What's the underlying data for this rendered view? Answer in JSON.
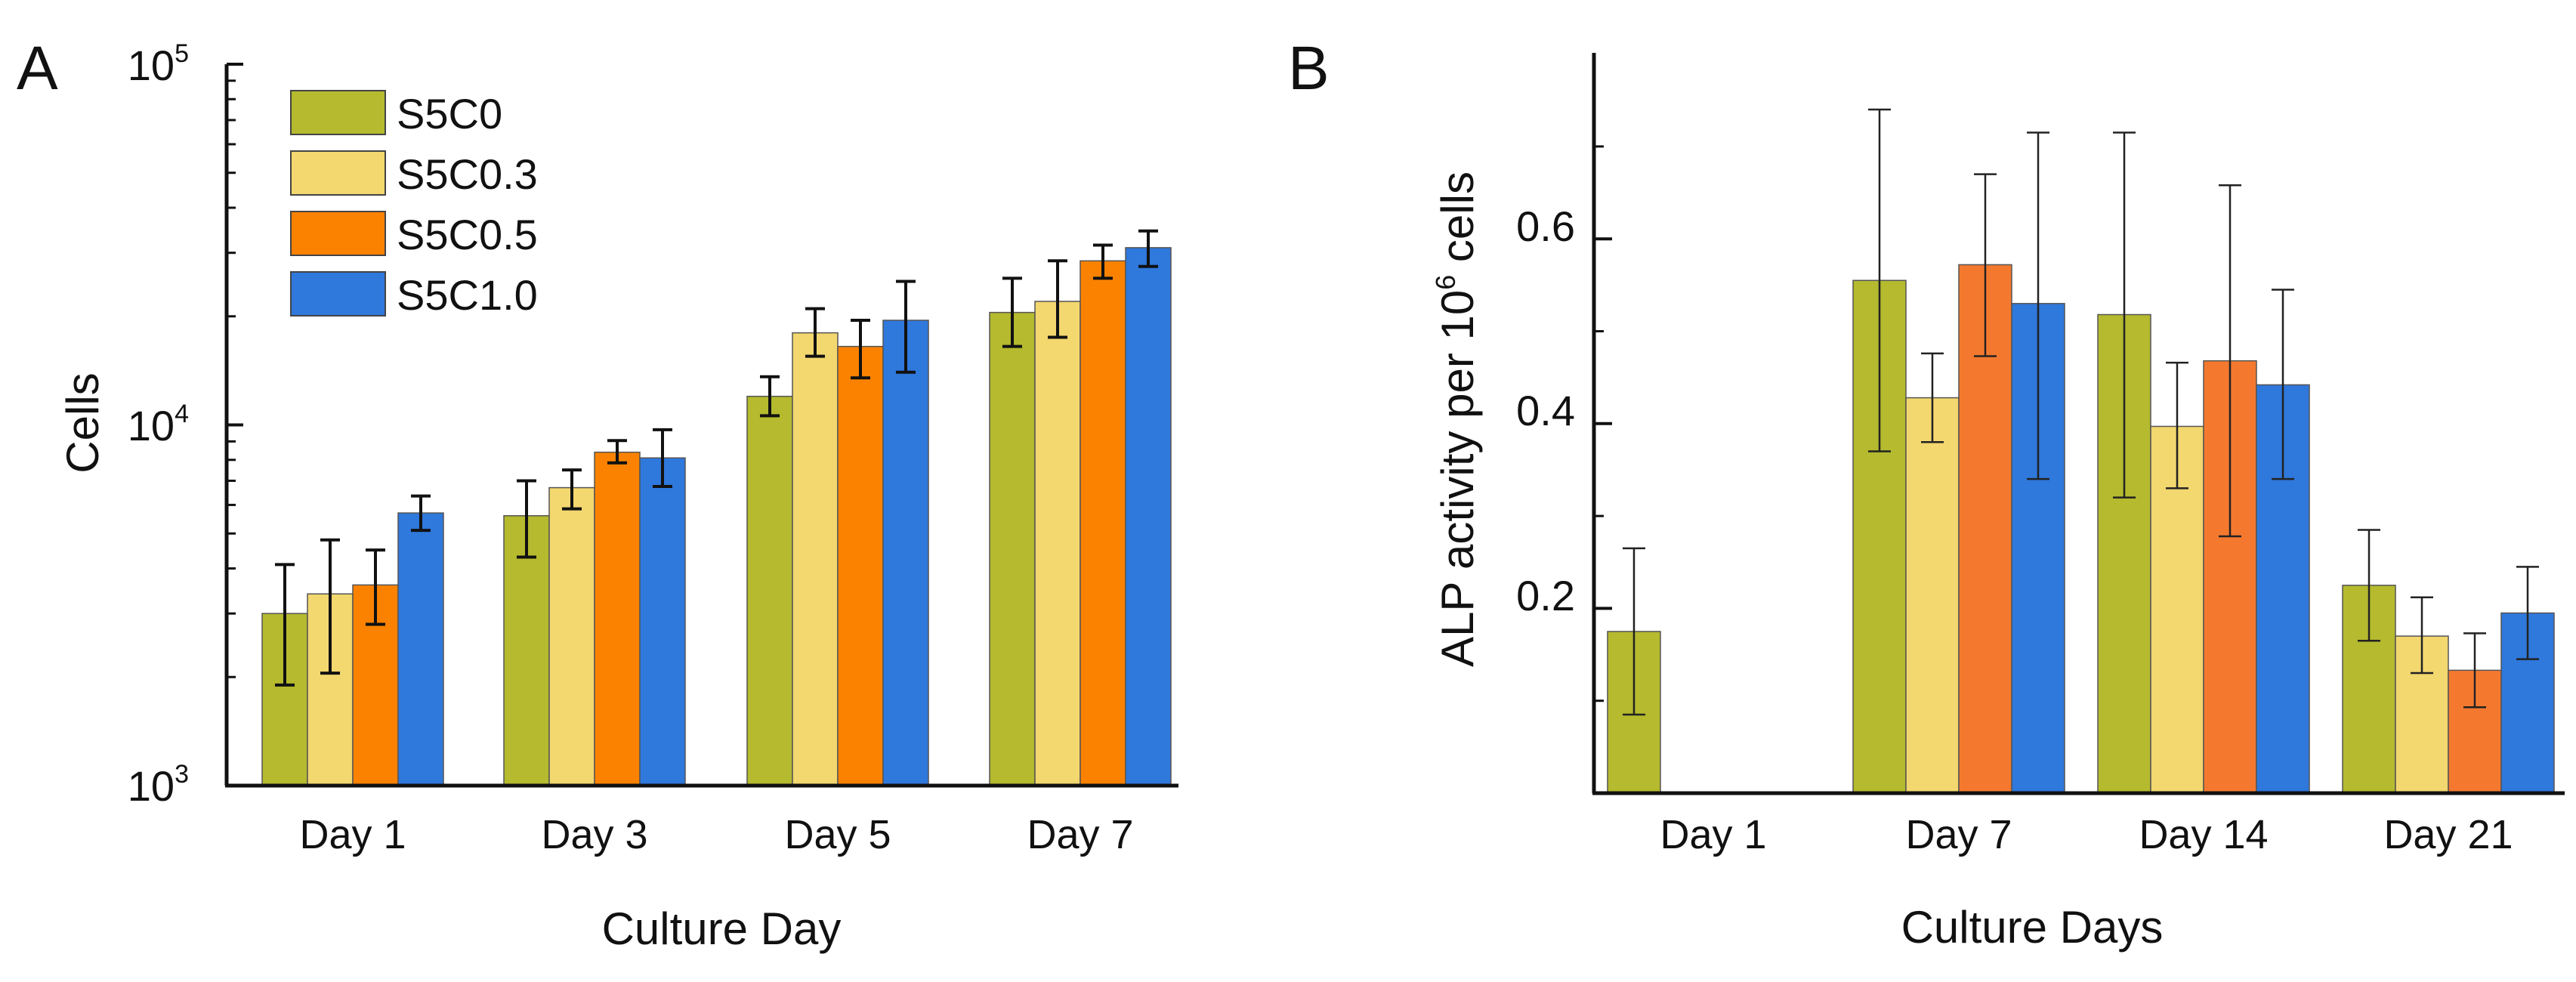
{
  "figure": {
    "series_colors": [
      "#b5ba2e",
      "#f3d76f",
      "#fb8200",
      "#2f78dc"
    ],
    "series_colors_b": [
      "#b5ba2e",
      "#f3d76f",
      "#f4792f",
      "#2f78dc"
    ]
  },
  "chart_data": [
    {
      "type": "bar",
      "panel_label": "A",
      "title": "",
      "xlabel": "Culture Day",
      "ylabel": "Cells",
      "yscale": "log",
      "ylim": [
        1000,
        100000
      ],
      "y_ticks": [
        {
          "value": 1000,
          "base": "10",
          "exp": "3"
        },
        {
          "value": 10000,
          "base": "10",
          "exp": "4"
        },
        {
          "value": 100000,
          "base": "10",
          "exp": "5"
        }
      ],
      "categories": [
        "Day 1",
        "Day 3",
        "Day 5",
        "Day 7"
      ],
      "series": [
        {
          "name": "S5C0",
          "values": [
            3000,
            5600,
            12000,
            20500
          ],
          "errors": [
            [
              1900,
              4100
            ],
            [
              4300,
              7000
            ],
            [
              10600,
              13600
            ],
            [
              16500,
              25500
            ]
          ]
        },
        {
          "name": "S5C0.3",
          "values": [
            3400,
            6700,
            18000,
            22000
          ],
          "errors": [
            [
              2050,
              4800
            ],
            [
              5850,
              7500
            ],
            [
              15500,
              21000
            ],
            [
              17500,
              28500
            ]
          ]
        },
        {
          "name": "S5C0.5",
          "values": [
            3600,
            8400,
            16500,
            28500
          ],
          "errors": [
            [
              2800,
              4500
            ],
            [
              7850,
              9050
            ],
            [
              13500,
              19500
            ],
            [
              25500,
              31500
            ]
          ]
        },
        {
          "name": "S5C1.0",
          "values": [
            5700,
            8100,
            19500,
            31000
          ],
          "errors": [
            [
              5100,
              6350
            ],
            [
              6750,
              9700
            ],
            [
              14000,
              25000
            ],
            [
              27500,
              34500
            ]
          ]
        }
      ],
      "legend": {
        "position": "top-left"
      }
    },
    {
      "type": "bar",
      "panel_label": "B",
      "title": "",
      "xlabel": "Culture Days",
      "ylabel": "ALP activity per 10",
      "ylabel_exp": "6",
      "ylabel_suffix": " cells",
      "ylim": [
        0,
        0.78
      ],
      "y_ticks": [
        {
          "value": 0.2,
          "label": "0.2"
        },
        {
          "value": 0.4,
          "label": "0.4"
        },
        {
          "value": 0.6,
          "label": "0.6"
        }
      ],
      "categories": [
        "Day 1",
        "Day 7",
        "Day 14",
        "Day 21"
      ],
      "series": [
        {
          "name": "S5C0",
          "values": [
            0.175,
            0.555,
            0.518,
            0.225
          ],
          "errors": [
            [
              0.085,
              0.265
            ],
            [
              0.37,
              0.74
            ],
            [
              0.32,
              0.715
            ],
            [
              0.165,
              0.285
            ]
          ]
        },
        {
          "name": "S5C0.3",
          "values": [
            null,
            0.428,
            0.397,
            0.17
          ],
          "errors": [
            null,
            [
              0.38,
              0.476
            ],
            [
              0.33,
              0.466
            ],
            [
              0.13,
              0.212
            ]
          ]
        },
        {
          "name": "S5C0.5",
          "values": [
            null,
            0.572,
            0.468,
            0.133
          ],
          "errors": [
            null,
            [
              0.473,
              0.67
            ],
            [
              0.278,
              0.658
            ],
            [
              0.093,
              0.173
            ]
          ]
        },
        {
          "name": "S5C1.0",
          "values": [
            null,
            0.53,
            0.442,
            0.195
          ],
          "errors": [
            null,
            [
              0.34,
              0.715
            ],
            [
              0.34,
              0.545
            ],
            [
              0.145,
              0.245
            ]
          ]
        }
      ]
    }
  ]
}
